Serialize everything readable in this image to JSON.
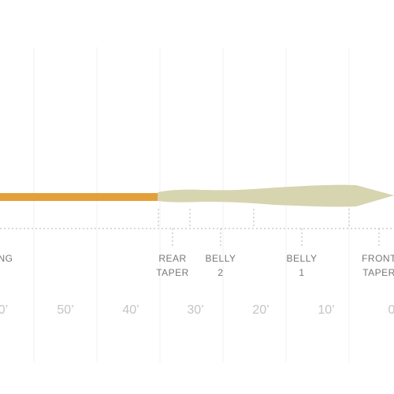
{
  "segments": [
    {
      "lines": [
        "NG"
      ]
    },
    {
      "lines": [
        "REAR",
        "TAPER"
      ]
    },
    {
      "lines": [
        "BELLY",
        "2"
      ]
    },
    {
      "lines": [
        "BELLY",
        "1"
      ]
    },
    {
      "lines": [
        "FRONT",
        "TAPER"
      ]
    }
  ],
  "distances": [
    "0’",
    "50’",
    "40’",
    "30’",
    "20’",
    "10’",
    "0"
  ]
}
